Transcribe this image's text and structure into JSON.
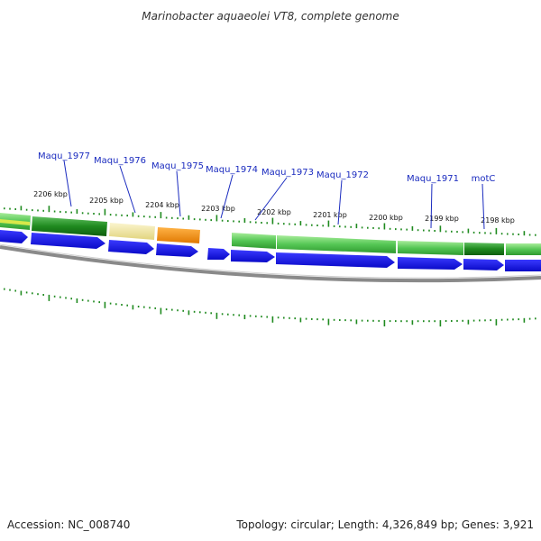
{
  "title": "Marinobacter aquaeolei VT8, complete genome",
  "accession": "Accession: NC_008740",
  "topology": "Topology: circular; Length: 4,326,849 bp; Genes: 3,921",
  "colors": {
    "gene_label": "#1a2bbf",
    "cds_arrow": "#1010e0",
    "backbone": "#8a8a8a",
    "tick": "#1f8a1f",
    "feature_green": "#2e9e2e",
    "feature_light_green": "#6fd06f",
    "feature_pale_yellow": "#efe6a0",
    "feature_orange": "#f08a00"
  },
  "gene_labels": [
    "Maqu_1977",
    "Maqu_1976",
    "Maqu_1975",
    "Maqu_1974",
    "Maqu_1973",
    "Maqu_1972",
    "Maqu_1971",
    "motC"
  ],
  "position_labels": [
    "2206 kbp",
    "2205 kbp",
    "2204 kbp",
    "2203 kbp",
    "2202 kbp",
    "2201 kbp",
    "2200 kbp",
    "2199 kbp",
    "2198 kbp"
  ]
}
